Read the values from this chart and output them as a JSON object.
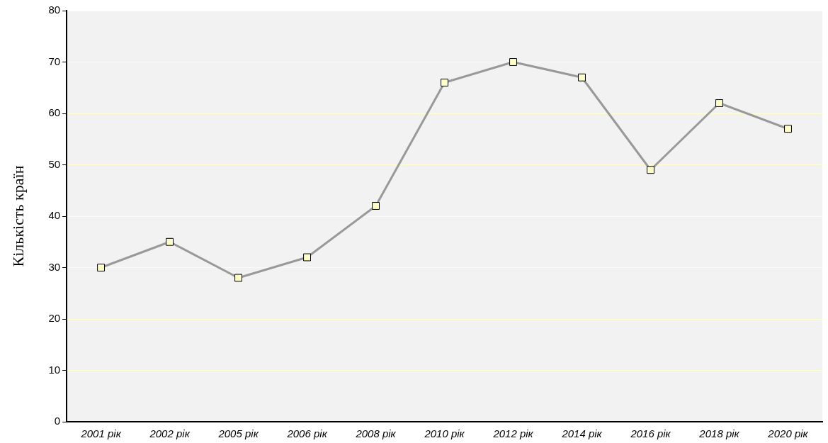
{
  "chart_data": {
    "type": "line",
    "ylabel": "Кількість країн",
    "categories": [
      "2001 рік",
      "2002 рік",
      "2005 рік",
      "2006 рік",
      "2008 рік",
      "2010 рік",
      "2012 рік",
      "2014 рік",
      "2016 рік",
      "2018 рік",
      "2020 рік"
    ],
    "series": [
      {
        "color": "#999999",
        "values": [
          30,
          35,
          28,
          32,
          42,
          66,
          70,
          67,
          49,
          62,
          57
        ]
      }
    ],
    "ylim": [
      0,
      80
    ],
    "yticks": [
      0,
      10,
      20,
      30,
      40,
      50,
      60,
      70,
      80
    ],
    "grid": "y",
    "legend": false,
    "marker": "square",
    "line_style": "solid"
  }
}
